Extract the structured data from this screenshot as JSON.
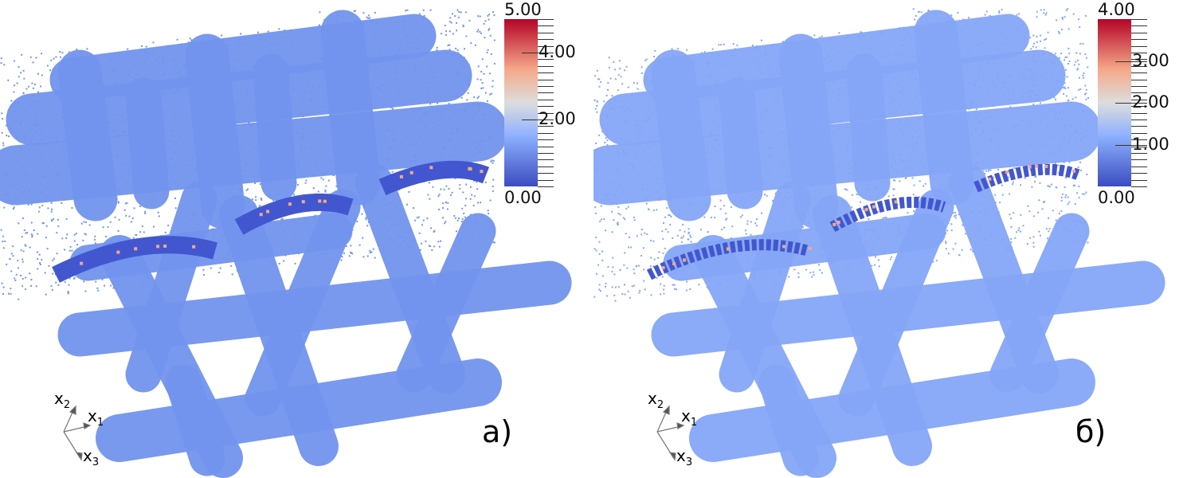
{
  "colormap": {
    "low": "#3b4cc0",
    "mid": "#dddddd",
    "high": "#b40426",
    "name": "cool-warm"
  },
  "fabric_color": {
    "panel_a": "#7294ee",
    "panel_b": "#85a6f7",
    "dark": "#4257cf",
    "hot": "#f2a88a"
  },
  "panels": [
    {
      "label": "а)",
      "colorbar": {
        "min": 0,
        "max": 5,
        "top_label": "5.00",
        "bottom_label": "0.00",
        "tick_labels": [
          {
            "text": "4.00",
            "value": 4
          },
          {
            "text": "2.00",
            "value": 2
          }
        ]
      }
    },
    {
      "label": "б)",
      "colorbar": {
        "min": 0,
        "max": 4,
        "top_label": "4.00",
        "bottom_label": "0.00",
        "tick_labels": [
          {
            "text": "3.00",
            "value": 3
          },
          {
            "text": "2.00",
            "value": 2
          },
          {
            "text": "1.00",
            "value": 1
          }
        ]
      }
    }
  ],
  "axes_triad": {
    "x1": "x",
    "x1_sub": "1",
    "x2": "x",
    "x2_sub": "2",
    "x3": "x",
    "x3_sub": "3"
  }
}
